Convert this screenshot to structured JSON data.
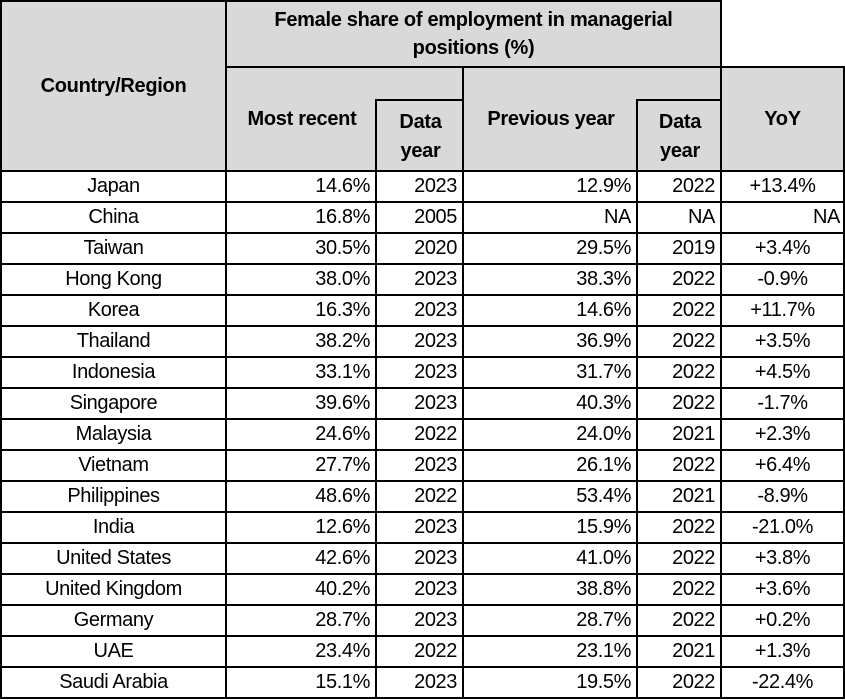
{
  "table": {
    "header": {
      "country_region": "Country/Region",
      "group_title": "Female share of employment in managerial positions (%)",
      "col_most_recent": "Most recent",
      "col_data_year_1": "Data year",
      "col_previous_year": "Previous year",
      "col_data_year_2": "Data year",
      "col_yoy": "YoY"
    }
  },
  "chart_data": {
    "type": "table",
    "title": "Female share of employment in managerial positions (%)",
    "columns": [
      "Country/Region",
      "Most recent",
      "Data year",
      "Previous year",
      "Data year",
      "YoY"
    ],
    "rows": [
      [
        "Japan",
        "14.6%",
        "2023",
        "12.9%",
        "2022",
        "+13.4%"
      ],
      [
        "China",
        "16.8%",
        "2005",
        "NA",
        "NA",
        "NA"
      ],
      [
        "Taiwan",
        "30.5%",
        "2020",
        "29.5%",
        "2019",
        "+3.4%"
      ],
      [
        "Hong Kong",
        "38.0%",
        "2023",
        "38.3%",
        "2022",
        "-0.9%"
      ],
      [
        "Korea",
        "16.3%",
        "2023",
        "14.6%",
        "2022",
        "+11.7%"
      ],
      [
        "Thailand",
        "38.2%",
        "2023",
        "36.9%",
        "2022",
        "+3.5%"
      ],
      [
        "Indonesia",
        "33.1%",
        "2023",
        "31.7%",
        "2022",
        "+4.5%"
      ],
      [
        "Singapore",
        "39.6%",
        "2023",
        "40.3%",
        "2022",
        "-1.7%"
      ],
      [
        "Malaysia",
        "24.6%",
        "2022",
        "24.0%",
        "2021",
        "+2.3%"
      ],
      [
        "Vietnam",
        "27.7%",
        "2023",
        "26.1%",
        "2022",
        "+6.4%"
      ],
      [
        "Philippines",
        "48.6%",
        "2022",
        "53.4%",
        "2021",
        "-8.9%"
      ],
      [
        "India",
        "12.6%",
        "2023",
        "15.9%",
        "2022",
        "-21.0%"
      ],
      [
        "United States",
        "42.6%",
        "2023",
        "41.0%",
        "2022",
        "+3.8%"
      ],
      [
        "United Kingdom",
        "40.2%",
        "2023",
        "38.8%",
        "2022",
        "+3.6%"
      ],
      [
        "Germany",
        "28.7%",
        "2023",
        "28.7%",
        "2022",
        "+0.2%"
      ],
      [
        "UAE",
        "23.4%",
        "2022",
        "23.1%",
        "2021",
        "+1.3%"
      ],
      [
        "Saudi Arabia",
        "15.1%",
        "2023",
        "19.5%",
        "2022",
        "-22.4%"
      ]
    ]
  },
  "colors": {
    "header_bg": "#d9d9d9",
    "border": "#000000",
    "text": "#000000",
    "row_bg": "#ffffff"
  }
}
